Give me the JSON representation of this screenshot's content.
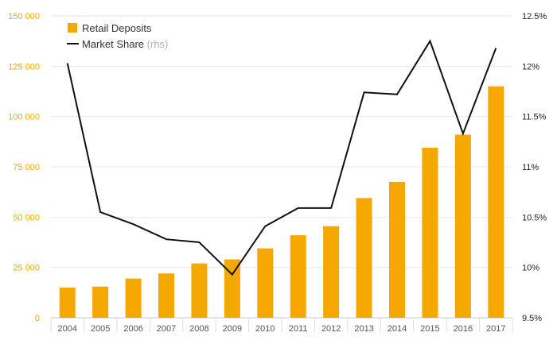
{
  "chart_data": {
    "type": "bar",
    "categories": [
      "2004",
      "2005",
      "2006",
      "2007",
      "2008",
      "2009",
      "2010",
      "2011",
      "2012",
      "2013",
      "2014",
      "2015",
      "2016",
      "2017"
    ],
    "series": [
      {
        "name": "Retail Deposits",
        "type": "bar",
        "axis": "left",
        "color": "#f5a800",
        "values": [
          15000,
          15500,
          19500,
          22000,
          27000,
          29000,
          34500,
          41000,
          45500,
          59500,
          67500,
          84500,
          91000,
          115000
        ]
      },
      {
        "name": "Market Share",
        "type": "line",
        "axis": "right",
        "color": "#111111",
        "values": [
          12.03,
          10.55,
          10.43,
          10.28,
          10.25,
          9.93,
          10.41,
          10.59,
          10.59,
          11.74,
          11.72,
          12.25,
          11.33,
          12.18
        ]
      }
    ],
    "legend": {
      "deposits_label": "Retail Deposits",
      "share_label": "Market Share",
      "share_suffix": "(rhs)",
      "position": "top-left"
    },
    "y_left": {
      "ylim": [
        0,
        150000
      ],
      "ticks": [
        0,
        25000,
        50000,
        75000,
        100000,
        125000,
        150000
      ],
      "tick_labels": [
        "0",
        "25 000",
        "50 000",
        "75 000",
        "100 000",
        "125 000",
        "150 000"
      ],
      "color": "#f2a900"
    },
    "y_right": {
      "ylim": [
        9.5,
        12.5
      ],
      "ticks": [
        9.5,
        10,
        10.5,
        11,
        11.5,
        12,
        12.5
      ],
      "tick_labels": [
        "9.5%",
        "10%",
        "10.5%",
        "11%",
        "11.5%",
        "12%",
        "12.5%"
      ]
    },
    "grid": true,
    "title": "",
    "xlabel": "",
    "ylabel": ""
  }
}
